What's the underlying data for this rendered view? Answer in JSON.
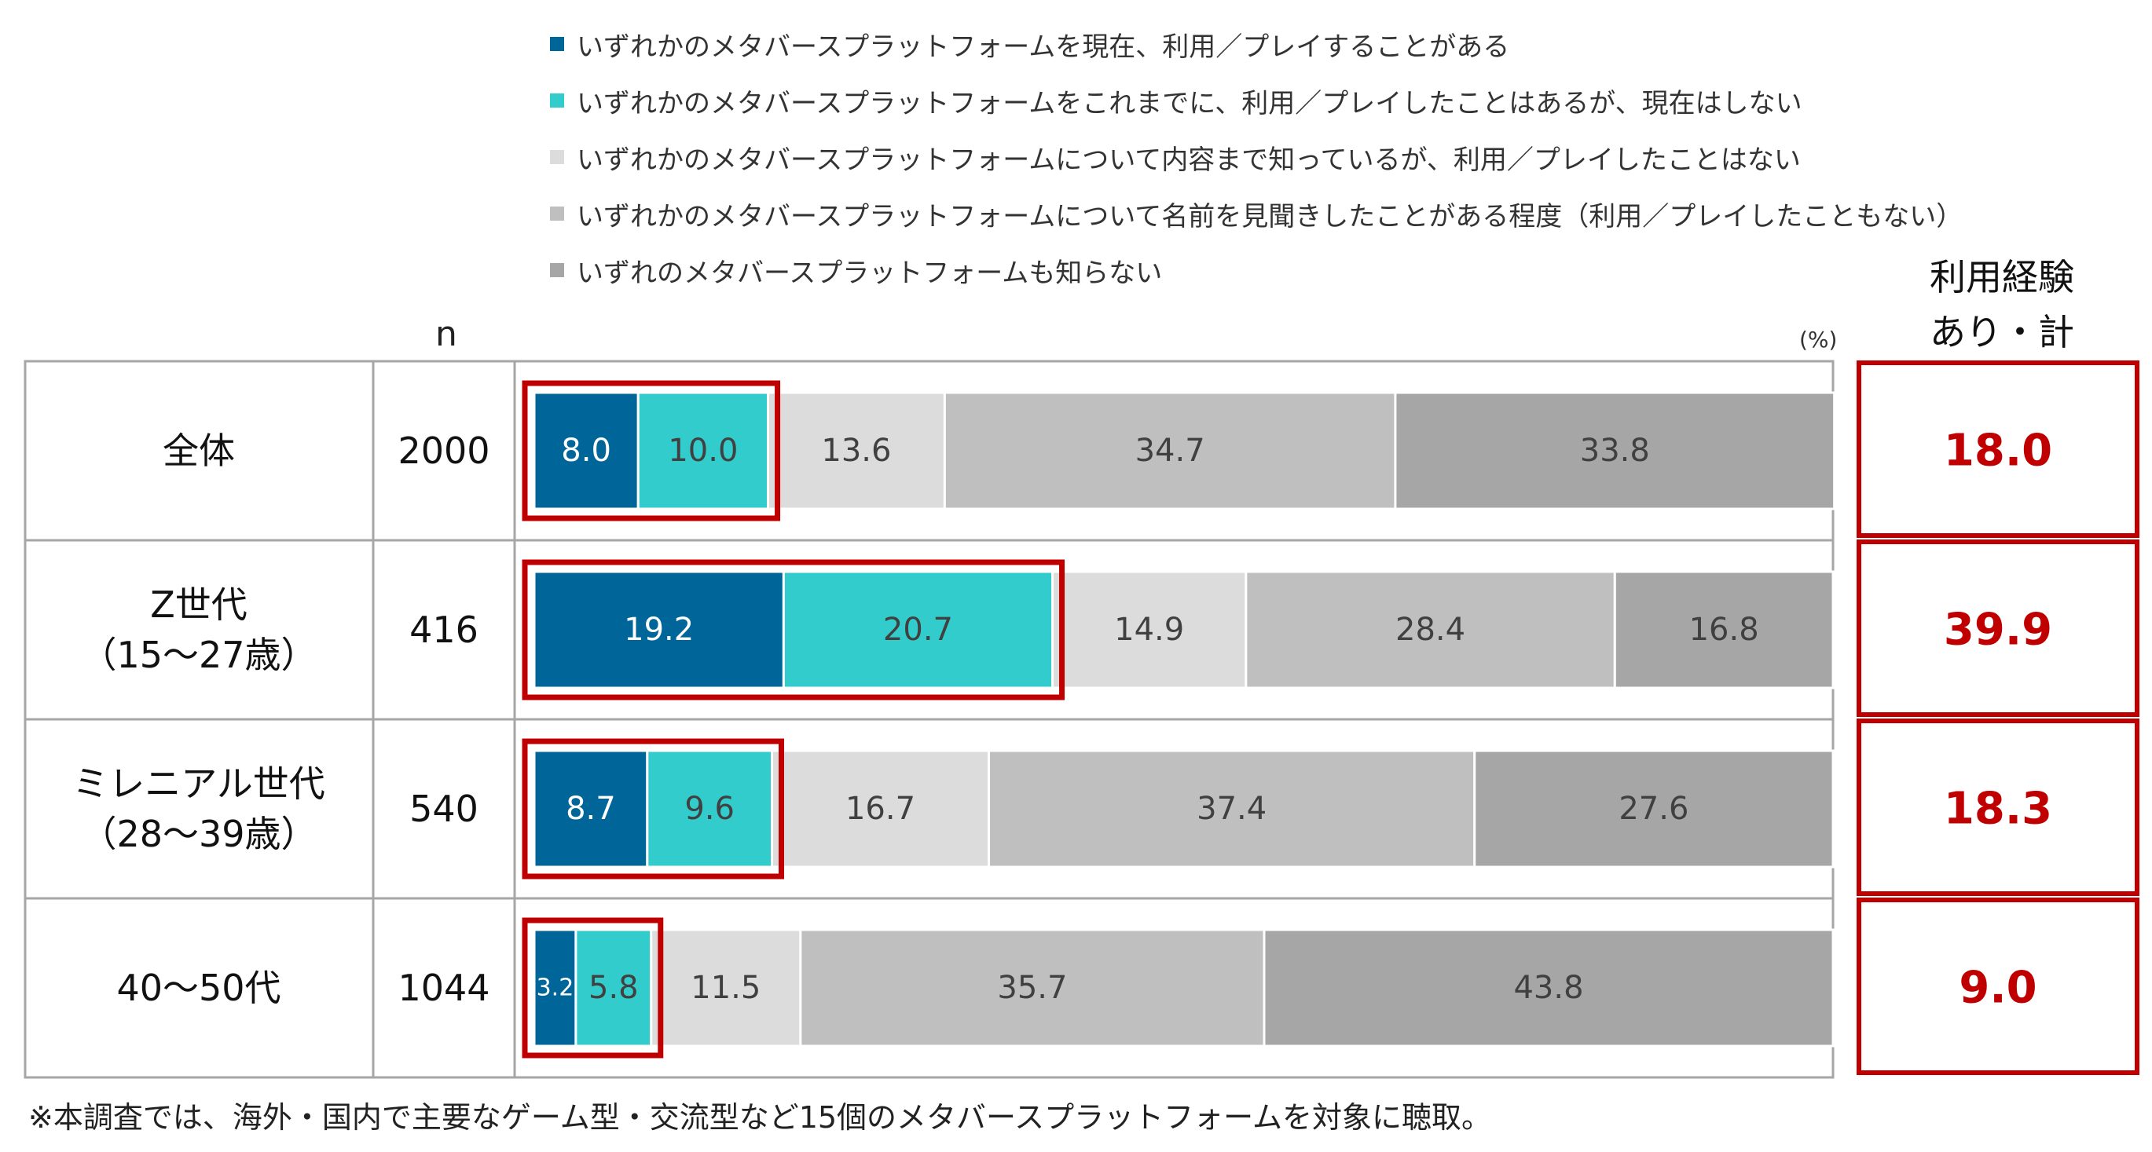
{
  "legend": [
    {
      "label": "いずれかのメタバースプラットフォームを現在、利用／プレイすることがある",
      "color": "#006699"
    },
    {
      "label": "いずれかのメタバースプラットフォームをこれまでに、利用／プレイしたことはあるが、現在はしない",
      "color": "#33cccc"
    },
    {
      "label": "いずれかのメタバースプラットフォームについて内容まで知っているが、利用／プレイしたことはない",
      "color": "#dcdcdc"
    },
    {
      "label": "いずれかのメタバースプラットフォームについて名前を見聞きしたことがある程度（利用／プレイしたこともない）",
      "color": "#bfbfbf"
    },
    {
      "label": "いずれのメタバースプラットフォームも知らない",
      "color": "#a6a6a6"
    }
  ],
  "headers": {
    "n": "n",
    "unit": "(%)",
    "experience_line1": "利用経験",
    "experience_line2": "あり・計"
  },
  "colors": {
    "highlight": "#c00000",
    "grid": "#a6a6a6",
    "label_dark": "#ffffff",
    "label_light": "#404040"
  },
  "chart_data": {
    "type": "bar",
    "orientation": "horizontal",
    "stacked": true,
    "percent_scale": [
      0,
      100
    ],
    "categories": [
      {
        "label_lines": [
          "全体"
        ],
        "n": "2000",
        "experience_total": "18.0"
      },
      {
        "label_lines": [
          "Z世代",
          "（15～27歳）"
        ],
        "n": "416",
        "experience_total": "39.9"
      },
      {
        "label_lines": [
          "ミレニアル世代",
          "（28～39歳）"
        ],
        "n": "540",
        "experience_total": "18.3"
      },
      {
        "label_lines": [
          "40～50代"
        ],
        "n": "1044",
        "experience_total": "9.0"
      }
    ],
    "series": [
      {
        "name": "いずれかのメタバースプラットフォームを現在、利用／プレイすることがある",
        "values": [
          8.0,
          19.2,
          8.7,
          3.2
        ]
      },
      {
        "name": "いずれかのメタバースプラットフォームをこれまでに、利用／プレイしたことはあるが、現在はしない",
        "values": [
          10.0,
          20.7,
          9.6,
          5.8
        ]
      },
      {
        "name": "いずれかのメタバースプラットフォームについて内容まで知っているが、利用／プレイしたことはない",
        "values": [
          13.6,
          14.9,
          16.7,
          11.5
        ]
      },
      {
        "name": "いずれかのメタバースプラットフォームについて名前を見聞きしたことがある程度（利用／プレイしたこともない）",
        "values": [
          34.7,
          28.4,
          37.4,
          35.7
        ]
      },
      {
        "name": "いずれのメタバースプラットフォームも知らない",
        "values": [
          33.8,
          16.8,
          27.6,
          43.8
        ]
      }
    ],
    "highlighted_series": [
      0,
      1
    ]
  },
  "footnote": "※本調査では、海外・国内で主要なゲーム型・交流型など15個のメタバースプラットフォームを対象に聴取。"
}
